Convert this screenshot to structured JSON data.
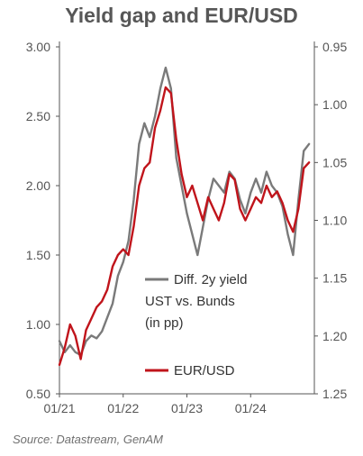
{
  "title": "Yield gap and EUR/USD",
  "source": "Source: Datastream, GenAM",
  "colors": {
    "series_gap": "#7a7a7a",
    "series_fx": "#c0141b",
    "axis": "#555555"
  },
  "chart_data": {
    "type": "line",
    "title": "Yield gap and EUR/USD",
    "x_ticks": [
      "01/21",
      "01/22",
      "01/23",
      "01/24"
    ],
    "x_range": [
      "2021-01",
      "2025-01"
    ],
    "y_left": {
      "ticks": [
        "0.50",
        "1.00",
        "1.50",
        "2.00",
        "2.50",
        "3.00"
      ],
      "range": [
        0.5,
        3.0
      ]
    },
    "y_right": {
      "ticks": [
        "0.95",
        "1.00",
        "1.05",
        "1.10",
        "1.15",
        "1.20",
        "1.25"
      ],
      "range": [
        1.25,
        0.95
      ],
      "inverted": true
    },
    "grid": false,
    "legend_position": "inside-right",
    "series": [
      {
        "name": "Diff. 2y yield UST vs. Bunds (in pp)",
        "axis": "left",
        "color": "#7a7a7a",
        "points": [
          [
            "2021-01",
            0.88
          ],
          [
            "2021-02",
            0.8
          ],
          [
            "2021-03",
            0.85
          ],
          [
            "2021-04",
            0.8
          ],
          [
            "2021-05",
            0.78
          ],
          [
            "2021-06",
            0.88
          ],
          [
            "2021-07",
            0.92
          ],
          [
            "2021-08",
            0.9
          ],
          [
            "2021-09",
            0.95
          ],
          [
            "2021-10",
            1.05
          ],
          [
            "2021-11",
            1.15
          ],
          [
            "2021-12",
            1.35
          ],
          [
            "2022-01",
            1.45
          ],
          [
            "2022-02",
            1.6
          ],
          [
            "2022-03",
            1.9
          ],
          [
            "2022-04",
            2.3
          ],
          [
            "2022-05",
            2.45
          ],
          [
            "2022-06",
            2.35
          ],
          [
            "2022-07",
            2.5
          ],
          [
            "2022-08",
            2.7
          ],
          [
            "2022-09",
            2.85
          ],
          [
            "2022-10",
            2.7
          ],
          [
            "2022-11",
            2.2
          ],
          [
            "2022-12",
            2.0
          ],
          [
            "2023-01",
            1.8
          ],
          [
            "2023-02",
            1.65
          ],
          [
            "2023-03",
            1.5
          ],
          [
            "2023-04",
            1.7
          ],
          [
            "2023-05",
            1.9
          ],
          [
            "2023-06",
            2.05
          ],
          [
            "2023-07",
            2.0
          ],
          [
            "2023-08",
            1.95
          ],
          [
            "2023-09",
            2.1
          ],
          [
            "2023-10",
            2.05
          ],
          [
            "2023-11",
            1.9
          ],
          [
            "2023-12",
            1.8
          ],
          [
            "2024-01",
            1.95
          ],
          [
            "2024-02",
            2.05
          ],
          [
            "2024-03",
            1.95
          ],
          [
            "2024-04",
            2.1
          ],
          [
            "2024-05",
            2.0
          ],
          [
            "2024-06",
            1.95
          ],
          [
            "2024-07",
            1.85
          ],
          [
            "2024-08",
            1.65
          ],
          [
            "2024-09",
            1.5
          ],
          [
            "2024-10",
            1.9
          ],
          [
            "2024-11",
            2.25
          ],
          [
            "2024-12",
            2.3
          ]
        ]
      },
      {
        "name": "EUR/USD",
        "axis": "right",
        "color": "#c0141b",
        "points": [
          [
            "2021-01",
            1.225
          ],
          [
            "2021-02",
            1.21
          ],
          [
            "2021-03",
            1.19
          ],
          [
            "2021-04",
            1.2
          ],
          [
            "2021-05",
            1.22
          ],
          [
            "2021-06",
            1.195
          ],
          [
            "2021-07",
            1.185
          ],
          [
            "2021-08",
            1.175
          ],
          [
            "2021-09",
            1.17
          ],
          [
            "2021-10",
            1.16
          ],
          [
            "2021-11",
            1.14
          ],
          [
            "2021-12",
            1.13
          ],
          [
            "2022-01",
            1.125
          ],
          [
            "2022-02",
            1.13
          ],
          [
            "2022-03",
            1.105
          ],
          [
            "2022-04",
            1.07
          ],
          [
            "2022-05",
            1.055
          ],
          [
            "2022-06",
            1.05
          ],
          [
            "2022-07",
            1.02
          ],
          [
            "2022-08",
            1.005
          ],
          [
            "2022-09",
            0.985
          ],
          [
            "2022-10",
            0.99
          ],
          [
            "2022-11",
            1.03
          ],
          [
            "2022-12",
            1.06
          ],
          [
            "2023-01",
            1.08
          ],
          [
            "2023-02",
            1.07
          ],
          [
            "2023-03",
            1.085
          ],
          [
            "2023-04",
            1.1
          ],
          [
            "2023-05",
            1.08
          ],
          [
            "2023-06",
            1.09
          ],
          [
            "2023-07",
            1.1
          ],
          [
            "2023-08",
            1.085
          ],
          [
            "2023-09",
            1.06
          ],
          [
            "2023-10",
            1.065
          ],
          [
            "2023-11",
            1.09
          ],
          [
            "2023-12",
            1.1
          ],
          [
            "2024-01",
            1.09
          ],
          [
            "2024-02",
            1.08
          ],
          [
            "2024-03",
            1.085
          ],
          [
            "2024-04",
            1.07
          ],
          [
            "2024-05",
            1.08
          ],
          [
            "2024-06",
            1.075
          ],
          [
            "2024-07",
            1.085
          ],
          [
            "2024-08",
            1.1
          ],
          [
            "2024-09",
            1.11
          ],
          [
            "2024-10",
            1.09
          ],
          [
            "2024-11",
            1.055
          ],
          [
            "2024-12",
            1.05
          ]
        ]
      }
    ],
    "legend": [
      {
        "lines": [
          "Diff. 2y yield",
          "UST vs. Bunds",
          "(in pp)"
        ],
        "color": "#7a7a7a"
      },
      {
        "lines": [
          "EUR/USD"
        ],
        "color": "#c0141b"
      }
    ]
  }
}
